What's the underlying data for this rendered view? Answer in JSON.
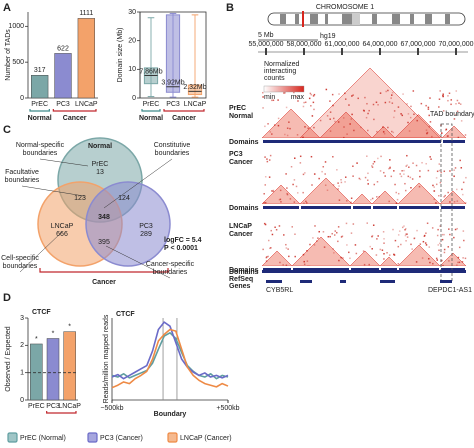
{
  "panels": [
    "A",
    "B",
    "C",
    "D"
  ],
  "chart_data": [
    {
      "type": "bar",
      "y_label": "Number of TADs",
      "categories": [
        "PrEC",
        "PC3",
        "LNCaP"
      ],
      "values": [
        317,
        622,
        1111
      ],
      "data_labels": true,
      "colors": [
        "#7ba7a7",
        "#8b8bd0",
        "#f3a26a"
      ],
      "ylim": [
        0,
        1200
      ],
      "yticks": [
        0,
        500,
        1000
      ],
      "groups": [
        {
          "label": "Normal",
          "color": "#3d8a8a",
          "categories": [
            "PrEC"
          ]
        },
        {
          "label": "Cancer",
          "color": "#c0272d",
          "categories": [
            "PC3",
            "LNCaP"
          ]
        }
      ]
    },
    {
      "type": "box",
      "y_label": "Domain size (Mb)",
      "categories": [
        "PrEC",
        "PC3",
        "LNCaP"
      ],
      "boxes": [
        {
          "min": 0.5,
          "q1": 5,
          "median": 7.86,
          "q3": 10.5,
          "max": 28
        },
        {
          "min": 0.3,
          "q1": 2,
          "median": 3.92,
          "q3": 29,
          "max": 29.5
        },
        {
          "min": 0.3,
          "q1": 1.2,
          "median": 2.32,
          "q3": 4.5,
          "max": 29
        }
      ],
      "value_labels": [
        "7.86Mb",
        "3.92Mb",
        "2.32Mb"
      ],
      "colors": [
        "#7ba7a7",
        "#8b8bd0",
        "#f3a26a"
      ],
      "ylim": [
        0,
        30
      ],
      "yticks": [
        0,
        10,
        20,
        30
      ],
      "groups": [
        {
          "label": "Normal",
          "color": "#3d8a8a",
          "categories": [
            "PrEC"
          ]
        },
        {
          "label": "Cancer",
          "color": "#c0272d",
          "categories": [
            "PC3",
            "LNCaP"
          ]
        }
      ]
    },
    {
      "type": "bar",
      "title": "CTCF",
      "y_label": "Observed / Expected",
      "categories": [
        "PrEC",
        "PC3",
        "LNCaP"
      ],
      "values": [
        2.05,
        2.25,
        2.5
      ],
      "colors": [
        "#7ba7a7",
        "#8b8bd0",
        "#f3a26a"
      ],
      "ylim": [
        0,
        3
      ],
      "yticks": [
        0,
        1,
        2,
        3
      ],
      "hline": 1,
      "markers": [
        "*",
        "*",
        "*"
      ],
      "groups": [
        {
          "color": "#c0272d",
          "categories": [
            "PC3",
            "LNCaP"
          ]
        }
      ]
    },
    {
      "type": "line",
      "title": "CTCF",
      "y_label": "Reads/million mapped reads",
      "x_label": "Boundary",
      "x": [
        -500,
        -450,
        -400,
        -350,
        -300,
        -250,
        -200,
        -150,
        -100,
        -50,
        0,
        50,
        100,
        150,
        200,
        250,
        300,
        350,
        400,
        450,
        500
      ],
      "xlim": [
        -500,
        500
      ],
      "xticks": [
        {
          "value": -500,
          "label": "−500kb"
        },
        {
          "value": 500,
          "label": "+500kb"
        }
      ],
      "ylim": [
        0,
        1
      ],
      "vlines": [
        -60,
        60
      ],
      "series": [
        {
          "name": "PrEC (Normal)",
          "color": "#5f9ea0",
          "values": [
            0.3,
            0.28,
            0.32,
            0.27,
            0.3,
            0.33,
            0.36,
            0.45,
            0.62,
            0.78,
            0.82,
            0.75,
            0.58,
            0.42,
            0.35,
            0.3,
            0.28,
            0.32,
            0.26,
            0.3,
            0.28
          ]
        },
        {
          "name": "PC3 (Cancer)",
          "color": "#6b6bc8",
          "values": [
            0.28,
            0.31,
            0.26,
            0.3,
            0.34,
            0.38,
            0.42,
            0.6,
            0.86,
            0.95,
            0.9,
            0.7,
            0.5,
            0.4,
            0.34,
            0.3,
            0.33,
            0.28,
            0.3,
            0.27,
            0.3
          ]
        },
        {
          "name": "LNCaP (Cancer)",
          "color": "#ee8a45",
          "values": [
            0.15,
            0.18,
            0.22,
            0.2,
            0.26,
            0.3,
            0.35,
            0.5,
            0.72,
            0.8,
            0.86,
            0.84,
            0.62,
            0.4,
            0.3,
            0.24,
            0.2,
            0.18,
            0.16,
            0.2,
            0.17
          ]
        }
      ]
    }
  ],
  "venn": {
    "sets": [
      {
        "name": "Normal",
        "color": "#3d8a8a"
      },
      {
        "name": "Cancer",
        "color": "#c0272d"
      }
    ],
    "regions": [
      {
        "label": "PrEC",
        "count": 13
      },
      {
        "label": "LNCaP",
        "count": 666
      },
      {
        "label": "PC3",
        "count": 289
      },
      {
        "count": 123
      },
      {
        "count": 124
      },
      {
        "count": 395
      },
      {
        "count": 348
      }
    ],
    "notes": [
      [
        "Normal-specific",
        "boundaries"
      ],
      [
        "Constitutive",
        "boundaries"
      ],
      [
        "Facultative",
        "boundaries"
      ],
      [
        "Cell-specific",
        "boundaries"
      ],
      [
        "Cancer-specific",
        "boundaries"
      ]
    ],
    "stats": [
      "logFC = 5.4",
      "P < 0.0001"
    ]
  },
  "browser": {
    "chromosome": "CHROMOSOME 1",
    "scale": "5 Mb",
    "assembly": "hg19",
    "coordinates": [
      "55,000,000",
      "58,000,000",
      "61,000,000",
      "64,000,000",
      "67,000,000",
      "70,000,000"
    ],
    "tracks": [
      {
        "name": "PrEC",
        "group": "Normal"
      },
      {
        "name": "PC3",
        "group": "Cancer"
      },
      {
        "name": "LNCaP",
        "group": "Cancer"
      }
    ],
    "domains_label": "Domains",
    "legend_title": [
      "Normalized",
      "interacting",
      "counts"
    ],
    "legend_min": "min",
    "legend_max": "max",
    "boundary_label": "TAD boundary",
    "genes_track": [
      "RefSeq",
      "Genes"
    ],
    "genes": [
      "CYB5RL",
      "DEPDC1-AS1"
    ]
  }
}
